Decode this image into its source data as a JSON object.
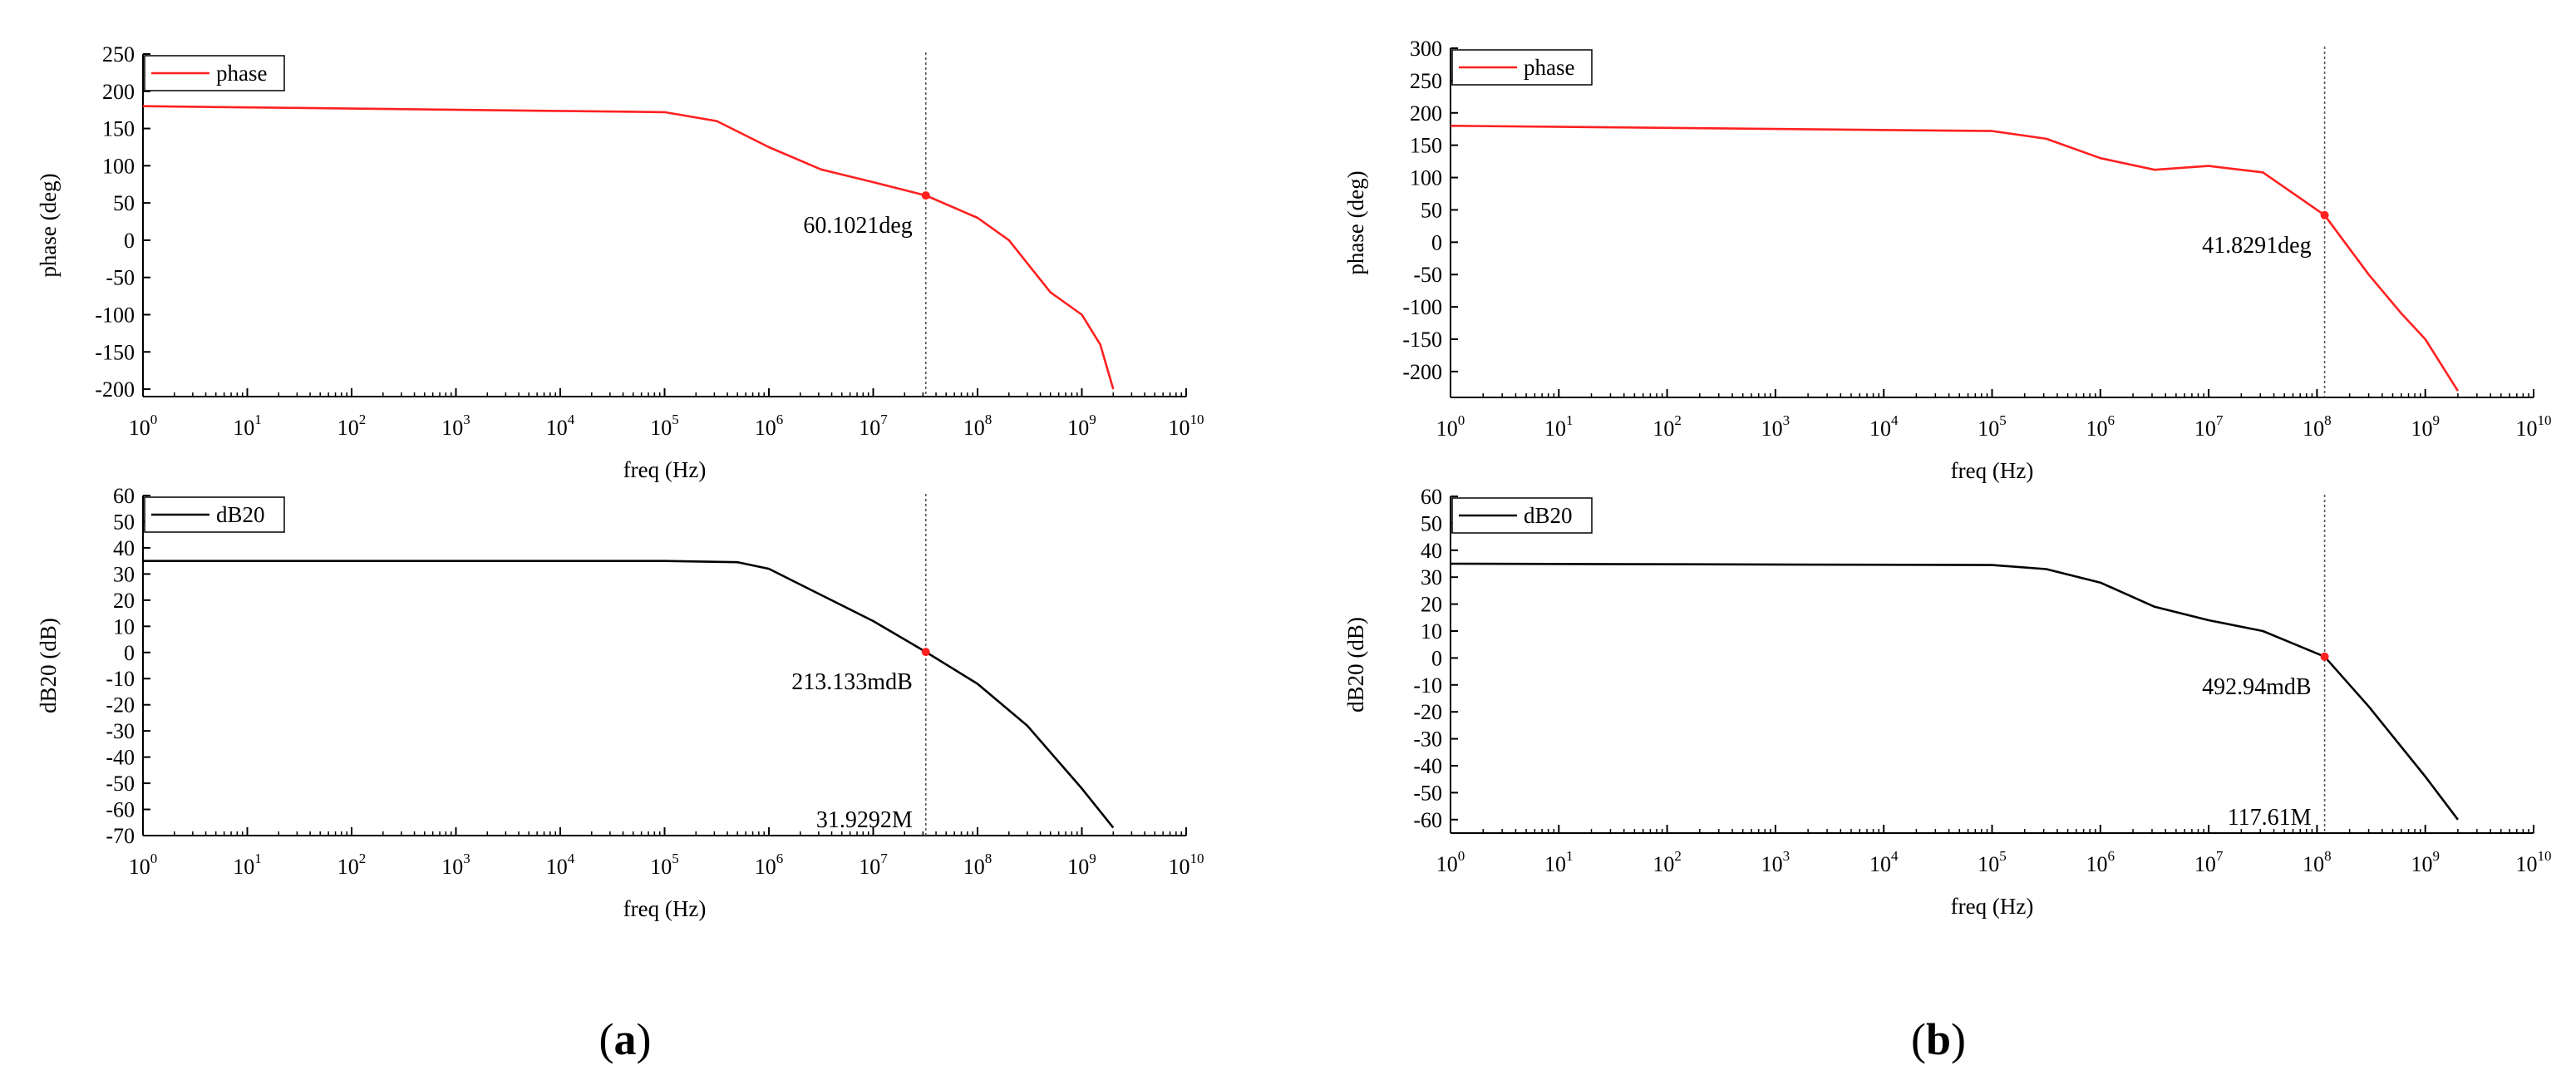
{
  "figure": {
    "panels": [
      {
        "label_left": "(",
        "label_letter": "a",
        "label_right": ")"
      },
      {
        "label_left": "(",
        "label_letter": "b",
        "label_right": ")"
      }
    ]
  },
  "chart_data": [
    {
      "type": "line",
      "panel": "a",
      "xlabel": "freq (Hz)",
      "ylabel": "phase (deg)",
      "xscale": "log",
      "xlim": [
        1,
        10000000000
      ],
      "ylim": [
        -210,
        250
      ],
      "yticks": [
        250,
        200,
        150,
        100,
        50,
        0,
        -50,
        -100,
        -150,
        -200
      ],
      "xtick_exponents": [
        0,
        1,
        2,
        3,
        4,
        5,
        6,
        7,
        8,
        9,
        10
      ],
      "xtick_base": "10",
      "legend": {
        "label": "phase",
        "position": "top-left"
      },
      "color": "#ff2020",
      "series": [
        {
          "name": "phase",
          "x": [
            1,
            100000,
            316228,
            1000000,
            3162280,
            10000000,
            31929200,
            100000000,
            200000000,
            500000000,
            1000000000,
            1500000000,
            2000000000
          ],
          "y": [
            180,
            172,
            160,
            125,
            95,
            78,
            60.1,
            30,
            0,
            -70,
            -100,
            -140,
            -200
          ]
        }
      ],
      "marker": {
        "x": 31929200,
        "y": 60.1021,
        "label": "60.1021deg"
      }
    },
    {
      "type": "line",
      "panel": "a",
      "xlabel": "freq (Hz)",
      "ylabel": "dB20 (dB)",
      "xscale": "log",
      "xlim": [
        1,
        10000000000
      ],
      "ylim": [
        -70,
        60
      ],
      "yticks": [
        60,
        50,
        40,
        30,
        20,
        10,
        0,
        -10,
        -20,
        -30,
        -40,
        -50,
        -60,
        -70
      ],
      "xtick_exponents": [
        0,
        1,
        2,
        3,
        4,
        5,
        6,
        7,
        8,
        9,
        10
      ],
      "xtick_base": "10",
      "legend": {
        "label": "dB20",
        "position": "top-left"
      },
      "color": "#000000",
      "series": [
        {
          "name": "dB20",
          "x": [
            1,
            100000,
            500000,
            1000000,
            3162280,
            10000000,
            31929200,
            100000000,
            300000000,
            1000000000,
            2000000000
          ],
          "y": [
            35,
            35,
            34.5,
            32,
            22,
            12,
            0.213,
            -12,
            -28,
            -52,
            -67
          ]
        }
      ],
      "marker": {
        "x": 31929200,
        "y": 0.213133,
        "label": "213.133mdB"
      },
      "freq_label": "31.9292M"
    },
    {
      "type": "line",
      "panel": "b",
      "xlabel": "freq (Hz)",
      "ylabel": "phase (deg)",
      "xscale": "log",
      "xlim": [
        1,
        10000000000
      ],
      "ylim": [
        -240,
        300
      ],
      "yticks": [
        300,
        250,
        200,
        150,
        100,
        50,
        0,
        -50,
        -100,
        -150,
        -200
      ],
      "xtick_exponents": [
        0,
        1,
        2,
        3,
        4,
        5,
        6,
        7,
        8,
        9,
        10
      ],
      "xtick_base": "10",
      "legend": {
        "label": "phase",
        "position": "top-left"
      },
      "color": "#ff2020",
      "series": [
        {
          "name": "phase",
          "x": [
            1,
            100000,
            316228,
            1000000,
            3162280,
            10000000,
            31622800,
            117610000,
            300000000,
            600000000,
            1000000000,
            2000000000
          ],
          "y": [
            180,
            172,
            160,
            130,
            112,
            118,
            108,
            41.8,
            -50,
            -110,
            -150,
            -230
          ]
        }
      ],
      "marker": {
        "x": 117610000,
        "y": 41.8291,
        "label": "41.8291deg"
      }
    },
    {
      "type": "line",
      "panel": "b",
      "xlabel": "freq (Hz)",
      "ylabel": "dB20 (dB)",
      "xscale": "log",
      "xlim": [
        1,
        10000000000
      ],
      "ylim": [
        -65,
        60
      ],
      "yticks": [
        60,
        50,
        40,
        30,
        20,
        10,
        0,
        -10,
        -20,
        -30,
        -40,
        -50,
        -60
      ],
      "xtick_exponents": [
        0,
        1,
        2,
        3,
        4,
        5,
        6,
        7,
        8,
        9,
        10
      ],
      "xtick_base": "10",
      "legend": {
        "label": "dB20",
        "position": "top-left"
      },
      "color": "#000000",
      "series": [
        {
          "name": "dB20",
          "x": [
            1,
            100000,
            316228,
            1000000,
            3162280,
            10000000,
            31622800,
            117610000,
            300000000,
            1000000000,
            2000000000
          ],
          "y": [
            35,
            34.5,
            33,
            28,
            19,
            14,
            10,
            0.49,
            -18,
            -44,
            -60
          ]
        }
      ],
      "marker": {
        "x": 117610000,
        "y": 0.49294,
        "label": "492.94mdB"
      },
      "freq_label": "117.61M"
    }
  ]
}
